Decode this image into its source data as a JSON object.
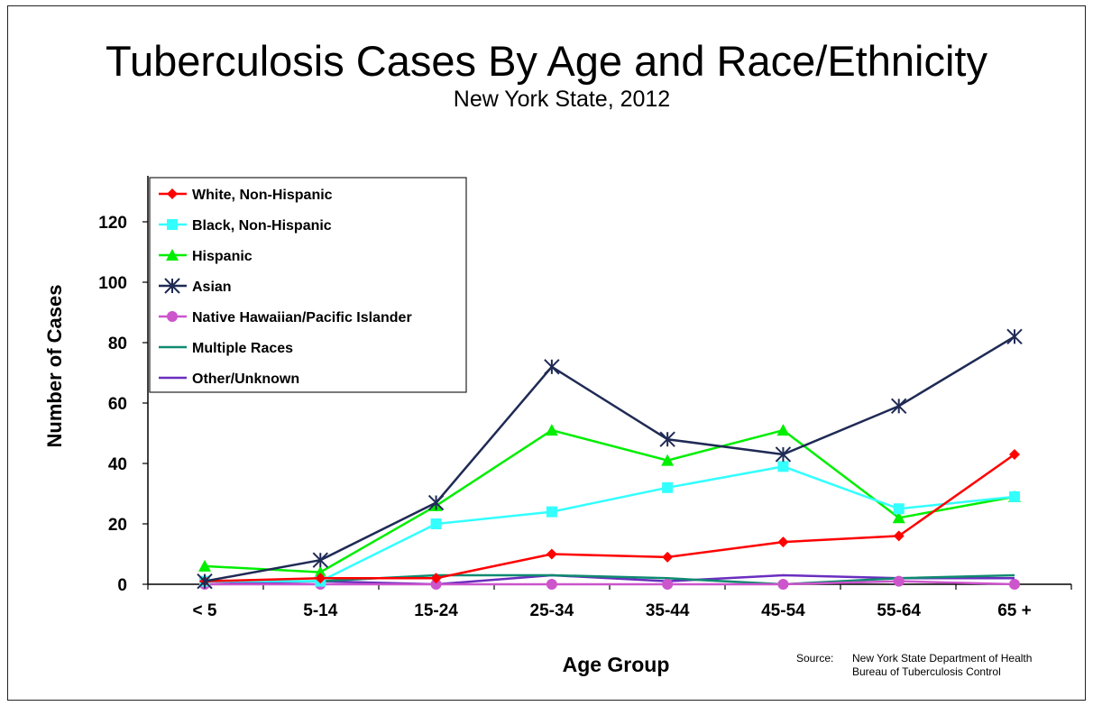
{
  "title": "Tuberculosis Cases By Age and Race/Ethnicity",
  "subtitle": "New York State, 2012",
  "source": {
    "label": "Source:",
    "line1": "New York State Department of Health",
    "line2": "Bureau of Tuberculosis Control"
  },
  "chart_data": {
    "type": "line",
    "xlabel": "Age Group",
    "ylabel": "Number of Cases",
    "ylim": [
      0,
      120
    ],
    "yticks": [
      0,
      20,
      40,
      60,
      80,
      100,
      120
    ],
    "categories": [
      "< 5",
      "5-14",
      "15-24",
      "25-34",
      "35-44",
      "45-54",
      "55-64",
      "65 +"
    ],
    "legend_position": "top-left",
    "grid": false,
    "series": [
      {
        "name": "White, Non-Hispanic",
        "color": "#ff0000",
        "marker": "diamond",
        "values": [
          1,
          2,
          2,
          10,
          9,
          14,
          16,
          43
        ]
      },
      {
        "name": "Black, Non-Hispanic",
        "color": "#33ffff",
        "marker": "square",
        "values": [
          1,
          1,
          20,
          24,
          32,
          39,
          25,
          29
        ]
      },
      {
        "name": "Hispanic",
        "color": "#00ee00",
        "marker": "triangle",
        "values": [
          6,
          4,
          26,
          51,
          41,
          51,
          22,
          29
        ]
      },
      {
        "name": "Asian",
        "color": "#1f2a55",
        "marker": "asterisk",
        "values": [
          1,
          8,
          27,
          72,
          48,
          43,
          59,
          82
        ]
      },
      {
        "name": "Native Hawaiian/Pacific Islander",
        "color": "#cc55cc",
        "marker": "circle",
        "values": [
          0,
          0,
          0,
          0,
          0,
          0,
          1,
          0
        ]
      },
      {
        "name": "Multiple Races",
        "color": "#0f8a70",
        "marker": "none",
        "values": [
          1,
          1,
          3,
          3,
          2,
          0,
          2,
          3
        ]
      },
      {
        "name": "Other/Unknown",
        "color": "#6a2dbf",
        "marker": "none",
        "values": [
          0,
          1,
          0,
          3,
          1,
          3,
          2,
          2
        ]
      }
    ]
  }
}
